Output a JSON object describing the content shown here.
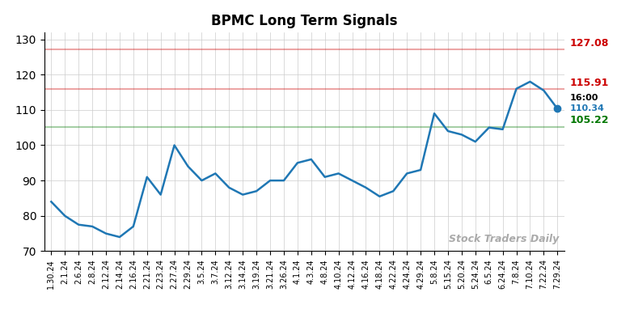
{
  "chart_data": {
    "type": "line",
    "title": "BPMC Long Term Signals",
    "categories": [
      "1.30.24",
      "2.1.24",
      "2.6.24",
      "2.8.24",
      "2.12.24",
      "2.14.24",
      "2.16.24",
      "2.21.24",
      "2.23.24",
      "2.27.24",
      "2.29.24",
      "3.5.24",
      "3.7.24",
      "3.12.24",
      "3.14.24",
      "3.19.24",
      "3.21.24",
      "3.26.24",
      "4.1.24",
      "4.3.24",
      "4.8.24",
      "4.10.24",
      "4.12.24",
      "4.16.24",
      "4.18.24",
      "4.22.24",
      "4.24.24",
      "4.29.24",
      "5.8.24",
      "5.15.24",
      "5.20.24",
      "5.24.24",
      "6.5.24",
      "6.24.24",
      "7.8.24",
      "7.10.24",
      "7.22.24",
      "7.29.24"
    ],
    "values": [
      84,
      80,
      77.5,
      77,
      75,
      74,
      77,
      91,
      86,
      100,
      94,
      90,
      92,
      88,
      86,
      87,
      90,
      90,
      95,
      96,
      91,
      92,
      90,
      88,
      85.5,
      87,
      92,
      93,
      109,
      104,
      103,
      101,
      105,
      104.5,
      116,
      118,
      115.5,
      110.34
    ],
    "hlines": [
      {
        "y": 127.08,
        "label": "127.08",
        "color": "#cc0000"
      },
      {
        "y": 115.91,
        "label": "115.91",
        "color": "#cc0000"
      },
      {
        "y": 105.22,
        "label": "105.22",
        "color": "#007700"
      }
    ],
    "watermark": "Stock Traders Daily",
    "end_labels": [
      "16:00",
      "110.34"
    ],
    "ylim": [
      70,
      132
    ],
    "yticks": [
      70,
      80,
      90,
      100,
      110,
      120,
      130
    ],
    "grid": true
  }
}
